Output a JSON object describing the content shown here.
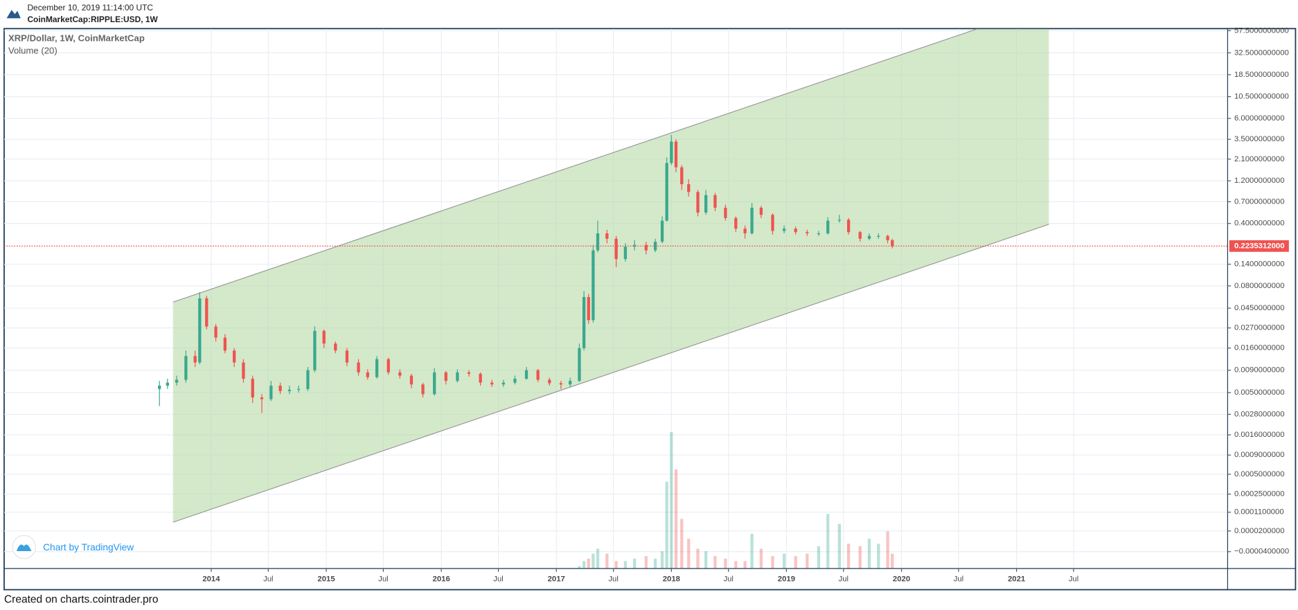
{
  "header": {
    "date": "December 10, 2019 11:14:00 UTC",
    "symbol": "CoinMarketCap:RIPPLE:USD, 1W"
  },
  "footer": "Created on charts.cointrader.pro",
  "chart_data": {
    "type": "candlestick",
    "title": "XRP/Dollar, 1W, CoinMarketCap",
    "subtitle": "Volume (20)",
    "branding": "Chart by TradingView",
    "up_color": "#3aa88e",
    "down_color": "#ef5350",
    "log_scale": true,
    "grid": true,
    "x": [
      2013.55,
      2013.62,
      2013.7,
      2013.78,
      2013.86,
      2013.9,
      2013.96,
      2014.04,
      2014.12,
      2014.2,
      2014.28,
      2014.36,
      2014.44,
      2014.52,
      2014.6,
      2014.68,
      2014.76,
      2014.84,
      2014.9,
      2014.98,
      2015.08,
      2015.18,
      2015.28,
      2015.36,
      2015.44,
      2015.54,
      2015.64,
      2015.74,
      2015.84,
      2015.94,
      2016.04,
      2016.14,
      2016.24,
      2016.34,
      2016.44,
      2016.54,
      2016.64,
      2016.74,
      2016.84,
      2016.94,
      2017.04,
      2017.12,
      2017.2,
      2017.24,
      2017.28,
      2017.32,
      2017.36,
      2017.44,
      2017.52,
      2017.6,
      2017.68,
      2017.78,
      2017.86,
      2017.92,
      2017.96,
      2018.0,
      2018.04,
      2018.09,
      2018.15,
      2018.23,
      2018.3,
      2018.38,
      2018.47,
      2018.56,
      2018.64,
      2018.7,
      2018.78,
      2018.88,
      2018.98,
      2019.08,
      2019.18,
      2019.28,
      2019.36,
      2019.46,
      2019.54,
      2019.64,
      2019.72,
      2019.8,
      2019.88,
      2019.92
    ],
    "open": [
      0.0055,
      0.006,
      0.0065,
      0.007,
      0.013,
      0.011,
      0.058,
      0.028,
      0.021,
      0.015,
      0.011,
      0.0072,
      0.0044,
      0.0042,
      0.006,
      0.0052,
      0.0054,
      0.0055,
      0.009,
      0.025,
      0.018,
      0.015,
      0.011,
      0.0085,
      0.0075,
      0.012,
      0.0085,
      0.0078,
      0.0062,
      0.0048,
      0.0085,
      0.0068,
      0.0085,
      0.0082,
      0.0065,
      0.0062,
      0.0065,
      0.0072,
      0.009,
      0.007,
      0.0064,
      0.0062,
      0.0068,
      0.016,
      0.06,
      0.033,
      0.2,
      0.31,
      0.27,
      0.16,
      0.22,
      0.23,
      0.2,
      0.25,
      0.43,
      1.9,
      3.3,
      1.7,
      1.1,
      0.9,
      0.53,
      0.83,
      0.6,
      0.46,
      0.35,
      0.31,
      0.6,
      0.5,
      0.33,
      0.35,
      0.32,
      0.31,
      0.31,
      0.43,
      0.44,
      0.32,
      0.27,
      0.29,
      0.29,
      0.26
    ],
    "high": [
      0.0068,
      0.0072,
      0.0078,
      0.015,
      0.015,
      0.068,
      0.062,
      0.03,
      0.023,
      0.016,
      0.012,
      0.0078,
      0.0048,
      0.0068,
      0.0065,
      0.006,
      0.006,
      0.0098,
      0.028,
      0.026,
      0.019,
      0.016,
      0.012,
      0.0092,
      0.013,
      0.0125,
      0.0092,
      0.0082,
      0.0065,
      0.0095,
      0.0088,
      0.0092,
      0.009,
      0.0085,
      0.007,
      0.007,
      0.0078,
      0.0098,
      0.0093,
      0.0074,
      0.0068,
      0.0074,
      0.018,
      0.07,
      0.065,
      0.23,
      0.43,
      0.34,
      0.29,
      0.24,
      0.26,
      0.25,
      0.27,
      0.48,
      2.2,
      3.9,
      3.5,
      1.8,
      1.25,
      0.95,
      0.95,
      0.88,
      0.65,
      0.48,
      0.38,
      0.68,
      0.63,
      0.52,
      0.38,
      0.37,
      0.34,
      0.33,
      0.47,
      0.5,
      0.46,
      0.33,
      0.31,
      0.31,
      0.3,
      0.27
    ],
    "low": [
      0.0035,
      0.0055,
      0.006,
      0.0065,
      0.0098,
      0.0105,
      0.026,
      0.019,
      0.014,
      0.0098,
      0.0065,
      0.0038,
      0.0029,
      0.004,
      0.0048,
      0.0048,
      0.005,
      0.0052,
      0.0085,
      0.016,
      0.014,
      0.01,
      0.0078,
      0.007,
      0.0072,
      0.008,
      0.0072,
      0.0056,
      0.0044,
      0.0046,
      0.0062,
      0.0065,
      0.0076,
      0.006,
      0.0058,
      0.0058,
      0.0062,
      0.007,
      0.0066,
      0.006,
      0.0055,
      0.0058,
      0.0066,
      0.015,
      0.03,
      0.031,
      0.19,
      0.24,
      0.13,
      0.15,
      0.2,
      0.18,
      0.19,
      0.24,
      0.42,
      1.8,
      1.5,
      0.95,
      0.8,
      0.48,
      0.5,
      0.55,
      0.43,
      0.32,
      0.27,
      0.3,
      0.46,
      0.3,
      0.31,
      0.3,
      0.29,
      0.29,
      0.3,
      0.41,
      0.3,
      0.25,
      0.26,
      0.27,
      0.24,
      0.21
    ],
    "close": [
      0.006,
      0.0065,
      0.007,
      0.013,
      0.011,
      0.058,
      0.028,
      0.021,
      0.015,
      0.011,
      0.0072,
      0.0044,
      0.0042,
      0.006,
      0.0052,
      0.0054,
      0.0055,
      0.009,
      0.025,
      0.018,
      0.015,
      0.011,
      0.0085,
      0.0075,
      0.012,
      0.0085,
      0.0078,
      0.0062,
      0.0048,
      0.0085,
      0.0068,
      0.0085,
      0.0082,
      0.0065,
      0.0062,
      0.0065,
      0.0072,
      0.009,
      0.007,
      0.0064,
      0.0062,
      0.0068,
      0.016,
      0.06,
      0.033,
      0.2,
      0.31,
      0.27,
      0.16,
      0.22,
      0.23,
      0.2,
      0.25,
      0.43,
      1.9,
      3.3,
      1.7,
      1.1,
      0.9,
      0.53,
      0.83,
      0.6,
      0.46,
      0.35,
      0.31,
      0.6,
      0.5,
      0.33,
      0.35,
      0.32,
      0.31,
      0.31,
      0.43,
      0.44,
      0.32,
      0.27,
      0.29,
      0.29,
      0.26,
      0.2235312
    ],
    "volume": [
      0.01,
      0.01,
      0.01,
      0.01,
      0.01,
      0.01,
      0.01,
      0.01,
      0.01,
      0.01,
      0.01,
      0.01,
      0.01,
      0.01,
      0.01,
      0.01,
      0.01,
      0.01,
      0.01,
      0.01,
      0.01,
      0.01,
      0.01,
      0.01,
      0.01,
      0.01,
      0.01,
      0.01,
      0.01,
      0.01,
      0.01,
      0.01,
      0.01,
      0.01,
      0.01,
      0.01,
      0.01,
      0.01,
      0.01,
      0.01,
      0.01,
      0.01,
      0.1,
      0.3,
      0.4,
      0.6,
      0.8,
      0.6,
      0.3,
      0.3,
      0.4,
      0.5,
      0.4,
      0.7,
      3.5,
      5.5,
      4.0,
      2.0,
      1.2,
      0.8,
      0.7,
      0.5,
      0.4,
      0.3,
      0.3,
      1.4,
      0.8,
      0.5,
      0.6,
      0.5,
      0.6,
      0.9,
      2.2,
      1.8,
      1.0,
      0.9,
      1.2,
      1.0,
      1.5,
      0.6
    ],
    "last_price": {
      "value": 0.2235312,
      "label": "0.2235312000"
    },
    "xlim": [
      2012.2,
      2022.835
    ],
    "xticks": [
      2014,
      {
        "value": 2014.496,
        "label": "Jul"
      },
      2015,
      {
        "value": 2015.496,
        "label": "Jul"
      },
      2016,
      {
        "value": 2016.496,
        "label": "Jul"
      },
      2017,
      {
        "value": 2017.496,
        "label": "Jul"
      },
      2018,
      {
        "value": 2018.496,
        "label": "Jul"
      },
      2019,
      {
        "value": 2019.496,
        "label": "Jul"
      },
      2020,
      {
        "value": 2020.496,
        "label": "Jul"
      },
      2021,
      {
        "value": 2021.496,
        "label": "Jul"
      }
    ],
    "ylim": [
      -7e-05,
      60
    ],
    "yticks": [
      {
        "value": 57.5,
        "label": "57.5000000000"
      },
      {
        "value": 32.5,
        "label": "32.5000000000"
      },
      {
        "value": 18.5,
        "label": "18.5000000000"
      },
      {
        "value": 10.5,
        "label": "10.5000000000"
      },
      {
        "value": 6,
        "label": "6.0000000000"
      },
      {
        "value": 3.5,
        "label": "3.5000000000"
      },
      {
        "value": 2.1,
        "label": "2.1000000000"
      },
      {
        "value": 1.2,
        "label": "1.2000000000"
      },
      {
        "value": 0.7,
        "label": "0.7000000000"
      },
      {
        "value": 0.4,
        "label": "0.4000000000"
      },
      {
        "value": 0.14,
        "label": "0.1400000000"
      },
      {
        "value": 0.08,
        "label": "0.0800000000"
      },
      {
        "value": 0.045,
        "label": "0.0450000000"
      },
      {
        "value": 0.027,
        "label": "0.0270000000"
      },
      {
        "value": 0.016,
        "label": "0.0160000000"
      },
      {
        "value": 0.009,
        "label": "0.0090000000"
      },
      {
        "value": 0.005,
        "label": "0.0050000000"
      },
      {
        "value": 0.0028,
        "label": "0.0028000000"
      },
      {
        "value": 0.0016,
        "label": "0.0016000000"
      },
      {
        "value": 0.0009,
        "label": "0.0009000000"
      },
      {
        "value": 0.0005,
        "label": "0.0005000000"
      },
      {
        "value": 0.00025,
        "label": "0.0002500000"
      },
      {
        "value": 0.00011,
        "label": "0.0001100000"
      },
      {
        "value": 2e-05,
        "label": "0.0000200000"
      },
      {
        "value": -4e-05,
        "label": "−0.0000400000"
      }
    ]
  }
}
